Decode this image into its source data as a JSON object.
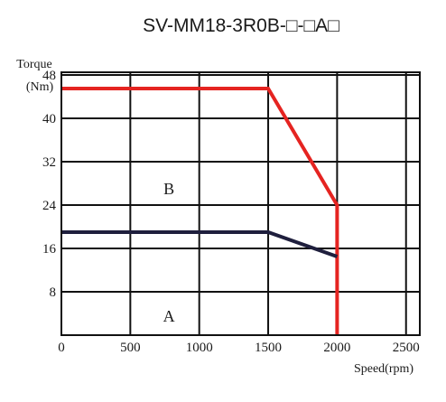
{
  "chart_data": {
    "type": "line",
    "title": "SV-MM18-3R0B-□-□A□",
    "ylabel_line1": "Torque",
    "ylabel_line2": "(Nm)",
    "xlabel": "Speed(rpm)",
    "xlim": [
      0,
      2600
    ],
    "ylim": [
      0,
      48.5
    ],
    "xticks": [
      0,
      500,
      1000,
      1500,
      2000,
      2500
    ],
    "yticks": [
      8,
      16,
      24,
      32,
      40,
      48
    ],
    "grid": true,
    "region_labels": [
      {
        "text": "B",
        "x": 780,
        "y": 27
      },
      {
        "text": "A",
        "x": 780,
        "y": 3.5
      }
    ],
    "series": [
      {
        "color": "#e52421",
        "x": [
          0,
          1500,
          2000,
          2000
        ],
        "y": [
          45.5,
          45.5,
          24,
          0
        ]
      },
      {
        "color": "#1f1f3d",
        "x": [
          0,
          1500,
          2000
        ],
        "y": [
          19,
          19,
          14.5
        ]
      }
    ]
  }
}
